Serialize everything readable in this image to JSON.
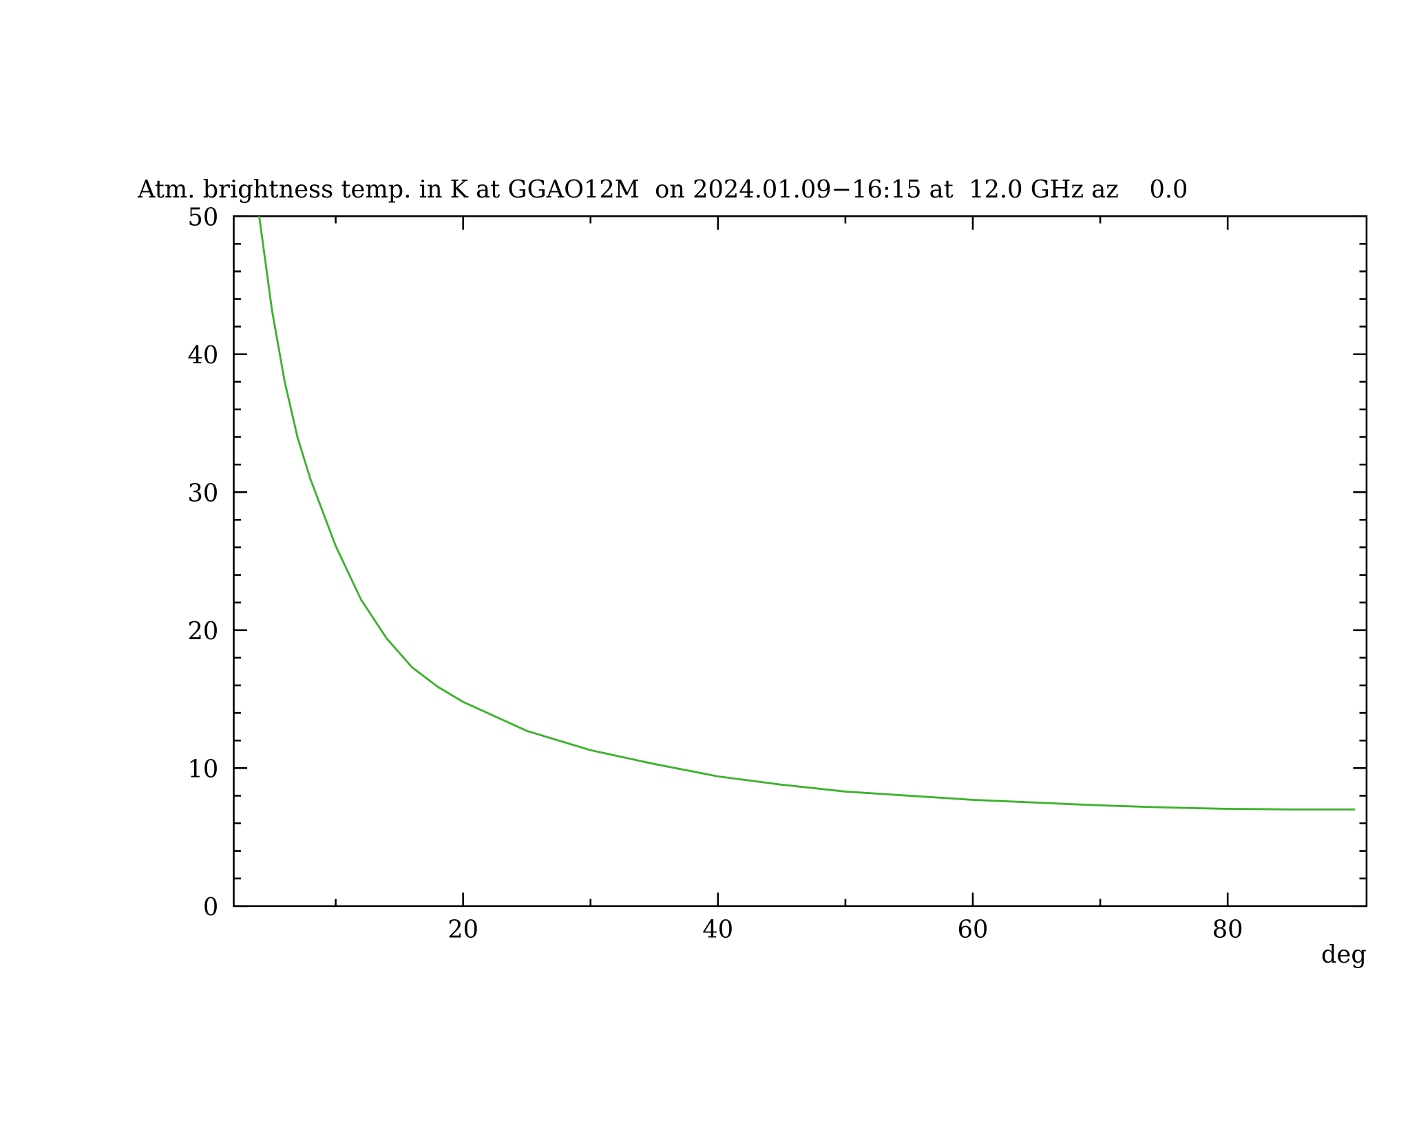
{
  "chart_data": {
    "type": "line",
    "title": "Atm. brightness temp. in K at GGAO12M  on 2024.01.09−16:15 at  12.0 GHz az    0.0",
    "x_label": "deg",
    "x": [
      4,
      5,
      6,
      7,
      8,
      10,
      12,
      14,
      16,
      18,
      20,
      25,
      30,
      35,
      40,
      45,
      50,
      55,
      60,
      65,
      70,
      75,
      80,
      85,
      90
    ],
    "series": [
      {
        "color": "#3cb22c",
        "values": [
          50,
          43.2,
          38,
          34,
          31,
          26.1,
          22.2,
          19.4,
          17.3,
          15.9,
          14.8,
          12.7,
          11.3,
          10.3,
          9.4,
          8.8,
          8.3,
          8.0,
          7.7,
          7.5,
          7.3,
          7.15,
          7.05,
          7.0,
          7.0
        ]
      }
    ],
    "xlim": [
      2,
      90.9
    ],
    "ylim": [
      0,
      50
    ],
    "xticks": [
      20,
      40,
      60,
      80
    ],
    "yticks": [
      0,
      10,
      20,
      30,
      40,
      50
    ],
    "xminorticks": [
      10,
      30,
      50,
      70
    ],
    "yminorticks": [
      2,
      4,
      6,
      8,
      12,
      14,
      16,
      18,
      22,
      24,
      26,
      28,
      32,
      34,
      36,
      38,
      42,
      44,
      46,
      48
    ]
  }
}
